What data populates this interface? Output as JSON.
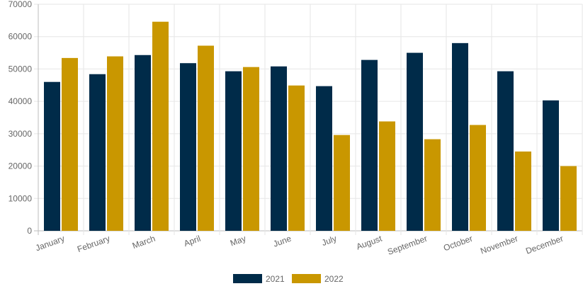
{
  "chart_data": {
    "type": "bar",
    "categories": [
      "January",
      "February",
      "March",
      "April",
      "May",
      "June",
      "July",
      "August",
      "September",
      "October",
      "November",
      "December"
    ],
    "series": [
      {
        "name": "2021",
        "color": "#002b49",
        "values": [
          46000,
          48400,
          54300,
          51800,
          49300,
          50800,
          44700,
          52800,
          55000,
          58000,
          49300,
          40300
        ]
      },
      {
        "name": "2022",
        "color": "#c99700",
        "values": [
          53400,
          53900,
          64600,
          57200,
          50600,
          44900,
          29600,
          33800,
          28300,
          32700,
          24500,
          20000
        ]
      }
    ],
    "ylim": [
      0,
      70000
    ],
    "yticks": [
      "0",
      "10000",
      "20000",
      "30000",
      "40000",
      "50000",
      "60000",
      "70000"
    ],
    "grid": true,
    "legend_position": "bottom"
  }
}
